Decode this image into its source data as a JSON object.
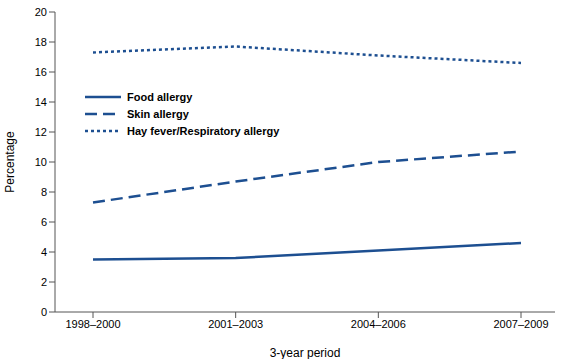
{
  "chart_data": {
    "type": "line",
    "x_label": "3-year period",
    "y_label": "Percentage",
    "categories": [
      "1998–2000",
      "2001–2003",
      "2004–2006",
      "2007–2009"
    ],
    "series": [
      {
        "name": "Food allergy",
        "color": "#1d4f91",
        "line_style": "solid",
        "values": [
          3.5,
          3.6,
          4.1,
          4.6
        ]
      },
      {
        "name": "Skin allergy",
        "color": "#1d4f91",
        "line_style": "dashed",
        "values": [
          7.3,
          8.7,
          10.0,
          10.7
        ]
      },
      {
        "name": "Hay fever/Respiratory allergy",
        "color": "#1d4f91",
        "line_style": "dotted",
        "values": [
          17.3,
          17.7,
          17.1,
          16.6
        ]
      }
    ],
    "ylim": [
      0,
      20
    ],
    "yticks": [
      0,
      2,
      4,
      6,
      8,
      10,
      12,
      14,
      16,
      18,
      20
    ],
    "legend": "upper left"
  }
}
